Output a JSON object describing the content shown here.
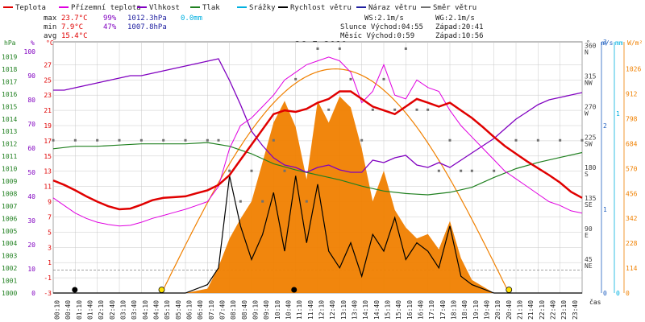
{
  "legend": [
    {
      "label": "Teplota",
      "color": "#e00000"
    },
    {
      "label": "Přízemní teplota",
      "color": "#e000e0"
    },
    {
      "label": "Vlhkost",
      "color": "#8000c0"
    },
    {
      "label": "Tlak",
      "color": "#208020"
    },
    {
      "label": "Srážky",
      "color": "#00b0e0"
    },
    {
      "label": "Rychlost větru",
      "color": "#000000"
    },
    {
      "label": "Náraz větru",
      "color": "#2020a0"
    },
    {
      "label": "Směr větru",
      "color": "#707070"
    }
  ],
  "stats": {
    "max": {
      "label": "max",
      "temp": "23.7°C",
      "hum": "99%",
      "press": "1012.3hPa",
      "rain": "0.0mm"
    },
    "min": {
      "label": "min",
      "temp": "7.9°C",
      "hum": "47%",
      "press": "1007.8hPa"
    },
    "avg": {
      "label": "avg",
      "temp": "15.4°C"
    }
  },
  "wind_info": {
    "ws": "WS:2.1m/s",
    "wg": "WG:2.1m/s"
  },
  "sun_info": {
    "sunrise": "Slunce Východ:04:55",
    "sunset": "Západ:20:41"
  },
  "moon_info": {
    "moonrise": "Měsíc Východ:0:59",
    "moonset": "Západ:10:56"
  },
  "axis_units": {
    "hpa": "hPa",
    "pct": "%",
    "degc": "°C",
    "deg": "°",
    "ms": "m/s",
    "mm": "mm",
    "wm2": "W/m²",
    "time": "čas"
  },
  "colors": {
    "temp": "#e00000",
    "ground": "#e000e0",
    "hum": "#8000c0",
    "press": "#208020",
    "wind": "#000000",
    "dir": "#707070",
    "solar": "#f08000",
    "solar_curve": "#f08000",
    "rain_axis": "#00b0e0",
    "ms_axis": "#2060c0",
    "grid": "#c8c8c8"
  },
  "chart_data": {
    "type": "line",
    "title": "26.5.2019",
    "x_ticks": [
      "00:10",
      "00:40",
      "01:10",
      "01:40",
      "02:10",
      "02:40",
      "03:10",
      "03:40",
      "04:10",
      "04:40",
      "05:10",
      "05:40",
      "06:10",
      "06:40",
      "07:10",
      "07:40",
      "08:10",
      "08:40",
      "09:10",
      "09:40",
      "10:10",
      "10:40",
      "11:10",
      "11:40",
      "12:10",
      "12:40",
      "13:10",
      "13:40",
      "14:10",
      "14:40",
      "15:10",
      "15:40",
      "16:10",
      "16:40",
      "17:10",
      "17:40",
      "18:10",
      "18:40",
      "19:10",
      "19:40",
      "20:10",
      "20:40",
      "21:10",
      "21:40",
      "22:10",
      "22:40",
      "23:10",
      "23:40"
    ],
    "y_axes": {
      "pressure_hpa": [
        "1000",
        "1001",
        "1002",
        "1003",
        "1004",
        "1005",
        "1006",
        "1007",
        "1008",
        "1009",
        "1010",
        "1011",
        "1012",
        "1013",
        "1014",
        "1015",
        "1016",
        "1017",
        "1018",
        "1019"
      ],
      "humidity_pct": [
        "0",
        "10",
        "20",
        "30",
        "40",
        "50",
        "60",
        "70",
        "80",
        "90",
        "100"
      ],
      "temperature_c": [
        "-3",
        "-1",
        "1",
        "3",
        "5",
        "7",
        "9",
        "11",
        "13",
        "15",
        "17",
        "19",
        "21",
        "23",
        "25",
        "27"
      ],
      "wind_dir_deg": [
        "NE",
        "45",
        "E",
        "90",
        "SE",
        "135",
        "S",
        "180",
        "SW",
        "225",
        "W",
        "270",
        "NW",
        "315",
        "N",
        "360"
      ],
      "wind_ms": [
        "0",
        "1",
        "2",
        "3"
      ],
      "rain_mm": [
        "0",
        "1"
      ],
      "solar_wm2": [
        "0",
        "114",
        "228",
        "342",
        "456",
        "570",
        "684",
        "798",
        "912",
        "1026"
      ]
    },
    "x_unit": "hours",
    "series": [
      {
        "name": "Teplota",
        "unit": "°C",
        "x": [
          0,
          0.5,
          1,
          1.5,
          2,
          2.5,
          3,
          3.5,
          4,
          4.5,
          5,
          5.5,
          6,
          6.5,
          7,
          7.5,
          8,
          8.5,
          9,
          9.5,
          10,
          10.5,
          11,
          11.5,
          12,
          12.5,
          13,
          13.5,
          14,
          14.5,
          15,
          15.5,
          16,
          16.5,
          17,
          17.5,
          18,
          18.5,
          19,
          19.5,
          20,
          20.5,
          21,
          21.5,
          22,
          22.5,
          23,
          23.5,
          24
        ],
        "y": [
          11.8,
          11.2,
          10.5,
          9.7,
          9.0,
          8.4,
          8.0,
          8.1,
          8.6,
          9.2,
          9.5,
          9.6,
          9.7,
          10.1,
          10.5,
          11.2,
          12.5,
          14.5,
          16.5,
          18.5,
          20.5,
          21.0,
          20.8,
          21.2,
          22.0,
          22.5,
          23.5,
          23.5,
          22.5,
          21.5,
          21.0,
          20.5,
          21.5,
          22.5,
          22.0,
          21.5,
          22.0,
          21.0,
          20.0,
          18.8,
          17.5,
          16.3,
          15.3,
          14.3,
          13.4,
          12.5,
          11.5,
          10.3,
          9.5
        ]
      },
      {
        "name": "Přízemní teplota",
        "unit": "°C",
        "x": [
          0,
          0.5,
          1,
          1.5,
          2,
          2.5,
          3,
          3.5,
          4,
          4.5,
          5,
          5.5,
          6,
          6.5,
          7,
          7.5,
          8,
          8.5,
          9,
          9.5,
          10,
          10.5,
          11,
          11.5,
          12,
          12.5,
          13,
          13.5,
          14,
          14.5,
          15,
          15.5,
          16,
          16.5,
          17,
          17.5,
          18,
          18.5,
          19,
          19.5,
          20,
          20.5,
          21,
          21.5,
          22,
          22.5,
          23,
          23.5,
          24
        ],
        "y": [
          9.5,
          8.5,
          7.5,
          6.8,
          6.3,
          6.0,
          5.8,
          5.9,
          6.3,
          6.8,
          7.2,
          7.6,
          8.0,
          8.5,
          9.0,
          11.0,
          16.0,
          19.0,
          20.0,
          21.5,
          23.0,
          25.0,
          26.0,
          27.0,
          27.5,
          28.0,
          27.5,
          26.0,
          22.0,
          23.5,
          27.0,
          23.0,
          22.5,
          25.0,
          24.0,
          23.5,
          21.0,
          19.0,
          17.5,
          16.0,
          14.5,
          13.0,
          12.0,
          11.0,
          10.0,
          9.0,
          8.5,
          7.8,
          7.5
        ]
      },
      {
        "name": "Vlhkost",
        "unit": "%",
        "x": [
          0,
          0.5,
          1,
          1.5,
          2,
          2.5,
          3,
          3.5,
          4,
          4.5,
          5,
          5.5,
          6,
          6.5,
          7,
          7.5,
          8,
          8.5,
          9,
          9.5,
          10,
          10.5,
          11,
          11.5,
          12,
          12.5,
          13,
          13.5,
          14,
          14.5,
          15,
          15.5,
          16,
          16.5,
          17,
          17.5,
          18,
          18.5,
          19,
          19.5,
          20,
          20.5,
          21,
          21.5,
          22,
          22.5,
          23,
          23.5,
          24
        ],
        "y": [
          84,
          84,
          85,
          86,
          87,
          88,
          89,
          90,
          90,
          91,
          92,
          93,
          94,
          95,
          96,
          97,
          88,
          78,
          67,
          61,
          56,
          53,
          52,
          50,
          52,
          53,
          51,
          50,
          50,
          55,
          54,
          56,
          57,
          53,
          52,
          54,
          52,
          55,
          58,
          61,
          64,
          68,
          72,
          75,
          78,
          80,
          81,
          82,
          83
        ]
      },
      {
        "name": "Tlak",
        "unit": "hPa",
        "x": [
          0,
          1,
          2,
          3,
          4,
          5,
          6,
          7,
          8,
          9,
          10,
          11,
          12,
          13,
          14,
          15,
          16,
          17,
          18,
          19,
          20,
          21,
          22,
          23,
          24
        ],
        "y": [
          1011.6,
          1011.8,
          1011.8,
          1011.9,
          1012.0,
          1012.0,
          1012.0,
          1012.1,
          1011.8,
          1011.2,
          1010.4,
          1009.9,
          1009.5,
          1009.1,
          1008.6,
          1008.2,
          1008.0,
          1007.9,
          1008.1,
          1008.5,
          1009.3,
          1010.0,
          1010.5,
          1010.9,
          1011.3
        ]
      },
      {
        "name": "Rychlost větru",
        "unit": "m/s",
        "x": [
          0,
          1,
          2,
          3,
          4,
          5,
          6,
          7,
          7.5,
          8,
          8.5,
          9,
          9.5,
          10,
          10.5,
          11,
          11.5,
          12,
          12.5,
          13,
          13.5,
          14,
          14.5,
          15,
          15.5,
          16,
          16.5,
          17,
          17.5,
          18,
          18.5,
          19,
          20,
          21,
          22,
          23,
          24
        ],
        "y": [
          0,
          0,
          0,
          0,
          0,
          0,
          0,
          0.1,
          0.3,
          1.4,
          0.8,
          0.4,
          0.7,
          1.2,
          0.5,
          1.4,
          0.6,
          1.3,
          0.5,
          0.3,
          0.6,
          0.2,
          0.7,
          0.5,
          0.9,
          0.4,
          0.6,
          0.5,
          0.3,
          0.8,
          0.2,
          0.1,
          0,
          0,
          0,
          0,
          0
        ]
      },
      {
        "name": "Směr větru",
        "unit": "°",
        "x": [
          0,
          1,
          2,
          3,
          4,
          5,
          6,
          7,
          7.5,
          8,
          8.5,
          9,
          9.5,
          10,
          10.5,
          11,
          11.5,
          12,
          12.5,
          13,
          13.5,
          14,
          14.5,
          15,
          15.5,
          16,
          16.5,
          17,
          17.5,
          18,
          18.5,
          19,
          20,
          21,
          22,
          23,
          24
        ],
        "y": [
          225,
          225,
          225,
          225,
          225,
          225,
          225,
          225,
          225,
          180,
          135,
          180,
          135,
          225,
          180,
          315,
          135,
          360,
          270,
          360,
          315,
          225,
          270,
          315,
          270,
          360,
          270,
          270,
          180,
          225,
          180,
          180,
          180,
          225,
          225,
          225,
          225
        ]
      },
      {
        "name": "Sluneční záření",
        "unit": "W/m²",
        "x": [
          0,
          5,
          6,
          7,
          7.5,
          8,
          8.5,
          9,
          9.5,
          10,
          10.5,
          11,
          11.5,
          12,
          12.5,
          13,
          13.5,
          14,
          14.5,
          15,
          15.5,
          16,
          16.5,
          17,
          17.5,
          18,
          18.5,
          19,
          20,
          24
        ],
        "y": [
          0,
          0,
          0,
          20,
          120,
          250,
          340,
          420,
          600,
          780,
          880,
          760,
          520,
          880,
          780,
          900,
          850,
          660,
          420,
          560,
          380,
          300,
          250,
          270,
          200,
          330,
          160,
          60,
          0,
          0
        ]
      }
    ],
    "solar_theoretical": {
      "rise_hour": 4.92,
      "set_hour": 20.68,
      "peak": 1026
    }
  }
}
